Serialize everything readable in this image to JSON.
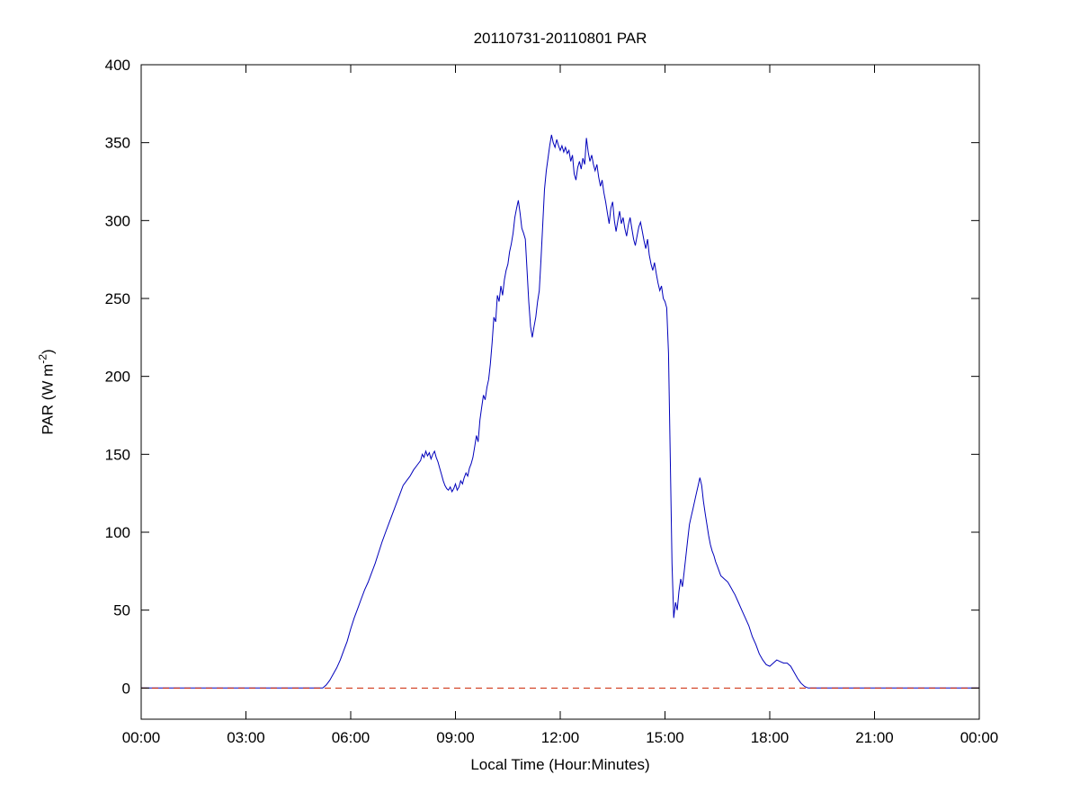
{
  "chart_data": {
    "type": "line",
    "title": "20110731-20110801 PAR",
    "xlabel": "Local Time (Hour:Minutes)",
    "ylabel": "PAR (W m^-2)",
    "ylabel_main": "PAR (W m",
    "ylabel_sup": "-2",
    "ylabel_end": ")",
    "xlim": [
      0,
      24
    ],
    "ylim": [
      -20,
      400
    ],
    "xtick_values": [
      0,
      3,
      6,
      9,
      12,
      15,
      18,
      21,
      24
    ],
    "xtick_labels": [
      "00:00",
      "03:00",
      "06:00",
      "09:00",
      "12:00",
      "15:00",
      "18:00",
      "21:00",
      "00:00"
    ],
    "ytick_values": [
      0,
      50,
      100,
      150,
      200,
      250,
      300,
      350,
      400
    ],
    "ytick_labels": [
      "0",
      "50",
      "100",
      "150",
      "200",
      "250",
      "300",
      "350",
      "400"
    ],
    "grid": false,
    "legend": "none",
    "axis_color": "#000000",
    "background_color": "#ffffff",
    "series": [
      {
        "name": "PAR",
        "color": "#0000bb",
        "style": "solid",
        "points": [
          [
            0,
            0
          ],
          [
            5.2,
            0
          ],
          [
            5.3,
            2
          ],
          [
            5.4,
            5
          ],
          [
            5.5,
            9
          ],
          [
            5.6,
            13
          ],
          [
            5.7,
            18
          ],
          [
            5.8,
            24
          ],
          [
            5.9,
            30
          ],
          [
            6.0,
            38
          ],
          [
            6.1,
            45
          ],
          [
            6.2,
            51
          ],
          [
            6.3,
            57
          ],
          [
            6.4,
            63
          ],
          [
            6.5,
            68
          ],
          [
            6.6,
            74
          ],
          [
            6.7,
            80
          ],
          [
            6.8,
            87
          ],
          [
            6.9,
            94
          ],
          [
            7.0,
            100
          ],
          [
            7.1,
            106
          ],
          [
            7.2,
            112
          ],
          [
            7.3,
            118
          ],
          [
            7.4,
            124
          ],
          [
            7.5,
            130
          ],
          [
            7.6,
            133
          ],
          [
            7.7,
            136
          ],
          [
            7.8,
            140
          ],
          [
            7.9,
            143
          ],
          [
            8.0,
            146
          ],
          [
            8.05,
            150
          ],
          [
            8.1,
            148
          ],
          [
            8.15,
            152
          ],
          [
            8.2,
            149
          ],
          [
            8.25,
            151
          ],
          [
            8.3,
            147
          ],
          [
            8.35,
            150
          ],
          [
            8.4,
            152
          ],
          [
            8.45,
            148
          ],
          [
            8.5,
            145
          ],
          [
            8.55,
            141
          ],
          [
            8.6,
            137
          ],
          [
            8.65,
            133
          ],
          [
            8.7,
            130
          ],
          [
            8.75,
            128
          ],
          [
            8.8,
            127
          ],
          [
            8.85,
            129
          ],
          [
            8.9,
            126
          ],
          [
            8.95,
            128
          ],
          [
            9.0,
            131
          ],
          [
            9.05,
            127
          ],
          [
            9.1,
            129
          ],
          [
            9.15,
            133
          ],
          [
            9.2,
            131
          ],
          [
            9.25,
            135
          ],
          [
            9.3,
            138
          ],
          [
            9.35,
            136
          ],
          [
            9.4,
            141
          ],
          [
            9.45,
            144
          ],
          [
            9.5,
            148
          ],
          [
            9.55,
            155
          ],
          [
            9.6,
            162
          ],
          [
            9.65,
            158
          ],
          [
            9.7,
            172
          ],
          [
            9.75,
            180
          ],
          [
            9.8,
            188
          ],
          [
            9.85,
            185
          ],
          [
            9.9,
            193
          ],
          [
            9.95,
            198
          ],
          [
            10.0,
            208
          ],
          [
            10.05,
            222
          ],
          [
            10.1,
            238
          ],
          [
            10.15,
            235
          ],
          [
            10.2,
            252
          ],
          [
            10.25,
            248
          ],
          [
            10.3,
            258
          ],
          [
            10.35,
            252
          ],
          [
            10.4,
            262
          ],
          [
            10.45,
            268
          ],
          [
            10.5,
            272
          ],
          [
            10.55,
            280
          ],
          [
            10.6,
            285
          ],
          [
            10.65,
            292
          ],
          [
            10.7,
            302
          ],
          [
            10.75,
            308
          ],
          [
            10.8,
            313
          ],
          [
            10.85,
            305
          ],
          [
            10.9,
            295
          ],
          [
            10.95,
            292
          ],
          [
            11.0,
            288
          ],
          [
            11.05,
            268
          ],
          [
            11.1,
            248
          ],
          [
            11.15,
            232
          ],
          [
            11.2,
            225
          ],
          [
            11.25,
            232
          ],
          [
            11.3,
            238
          ],
          [
            11.35,
            248
          ],
          [
            11.4,
            255
          ],
          [
            11.45,
            275
          ],
          [
            11.5,
            298
          ],
          [
            11.55,
            320
          ],
          [
            11.6,
            332
          ],
          [
            11.65,
            340
          ],
          [
            11.7,
            348
          ],
          [
            11.75,
            355
          ],
          [
            11.8,
            350
          ],
          [
            11.85,
            347
          ],
          [
            11.9,
            352
          ],
          [
            11.95,
            348
          ],
          [
            12.0,
            345
          ],
          [
            12.05,
            348
          ],
          [
            12.1,
            344
          ],
          [
            12.15,
            347
          ],
          [
            12.2,
            343
          ],
          [
            12.25,
            345
          ],
          [
            12.3,
            338
          ],
          [
            12.35,
            342
          ],
          [
            12.4,
            330
          ],
          [
            12.45,
            326
          ],
          [
            12.5,
            334
          ],
          [
            12.55,
            338
          ],
          [
            12.6,
            333
          ],
          [
            12.65,
            340
          ],
          [
            12.7,
            336
          ],
          [
            12.75,
            353
          ],
          [
            12.8,
            344
          ],
          [
            12.85,
            338
          ],
          [
            12.9,
            342
          ],
          [
            12.95,
            336
          ],
          [
            13.0,
            332
          ],
          [
            13.05,
            336
          ],
          [
            13.1,
            328
          ],
          [
            13.15,
            322
          ],
          [
            13.2,
            326
          ],
          [
            13.25,
            318
          ],
          [
            13.3,
            312
          ],
          [
            13.35,
            305
          ],
          [
            13.4,
            298
          ],
          [
            13.45,
            308
          ],
          [
            13.5,
            312
          ],
          [
            13.55,
            300
          ],
          [
            13.6,
            293
          ],
          [
            13.65,
            300
          ],
          [
            13.7,
            306
          ],
          [
            13.75,
            298
          ],
          [
            13.8,
            302
          ],
          [
            13.85,
            295
          ],
          [
            13.9,
            290
          ],
          [
            13.95,
            297
          ],
          [
            14.0,
            302
          ],
          [
            14.05,
            295
          ],
          [
            14.1,
            288
          ],
          [
            14.15,
            284
          ],
          [
            14.2,
            290
          ],
          [
            14.25,
            296
          ],
          [
            14.3,
            299
          ],
          [
            14.35,
            293
          ],
          [
            14.4,
            287
          ],
          [
            14.45,
            282
          ],
          [
            14.5,
            288
          ],
          [
            14.55,
            278
          ],
          [
            14.6,
            272
          ],
          [
            14.65,
            268
          ],
          [
            14.7,
            273
          ],
          [
            14.75,
            266
          ],
          [
            14.8,
            260
          ],
          [
            14.85,
            255
          ],
          [
            14.9,
            258
          ],
          [
            14.95,
            250
          ],
          [
            15.0,
            248
          ],
          [
            15.05,
            244
          ],
          [
            15.1,
            215
          ],
          [
            15.15,
            150
          ],
          [
            15.2,
            80
          ],
          [
            15.25,
            45
          ],
          [
            15.3,
            55
          ],
          [
            15.35,
            50
          ],
          [
            15.4,
            62
          ],
          [
            15.45,
            70
          ],
          [
            15.5,
            65
          ],
          [
            15.55,
            75
          ],
          [
            15.6,
            85
          ],
          [
            15.65,
            95
          ],
          [
            15.7,
            105
          ],
          [
            15.75,
            110
          ],
          [
            15.8,
            115
          ],
          [
            15.85,
            120
          ],
          [
            15.9,
            125
          ],
          [
            15.95,
            130
          ],
          [
            16.0,
            135
          ],
          [
            16.05,
            130
          ],
          [
            16.1,
            120
          ],
          [
            16.15,
            112
          ],
          [
            16.2,
            105
          ],
          [
            16.25,
            98
          ],
          [
            16.3,
            92
          ],
          [
            16.35,
            88
          ],
          [
            16.4,
            85
          ],
          [
            16.45,
            81
          ],
          [
            16.5,
            78
          ],
          [
            16.55,
            75
          ],
          [
            16.6,
            72
          ],
          [
            16.65,
            71
          ],
          [
            16.7,
            70
          ],
          [
            16.75,
            69
          ],
          [
            16.8,
            68
          ],
          [
            16.85,
            66
          ],
          [
            16.9,
            64
          ],
          [
            16.95,
            62
          ],
          [
            17.0,
            60
          ],
          [
            17.1,
            55
          ],
          [
            17.2,
            50
          ],
          [
            17.3,
            45
          ],
          [
            17.4,
            40
          ],
          [
            17.5,
            33
          ],
          [
            17.6,
            28
          ],
          [
            17.7,
            22
          ],
          [
            17.8,
            18
          ],
          [
            17.9,
            15
          ],
          [
            18.0,
            14
          ],
          [
            18.1,
            16
          ],
          [
            18.2,
            18
          ],
          [
            18.3,
            17
          ],
          [
            18.4,
            16
          ],
          [
            18.5,
            16
          ],
          [
            18.6,
            14
          ],
          [
            18.7,
            10
          ],
          [
            18.8,
            6
          ],
          [
            18.9,
            3
          ],
          [
            19.0,
            1
          ],
          [
            19.1,
            0
          ],
          [
            24,
            0
          ]
        ]
      }
    ],
    "zero_line": {
      "y": 0,
      "color": "#cc2200",
      "style": "dashed"
    }
  }
}
